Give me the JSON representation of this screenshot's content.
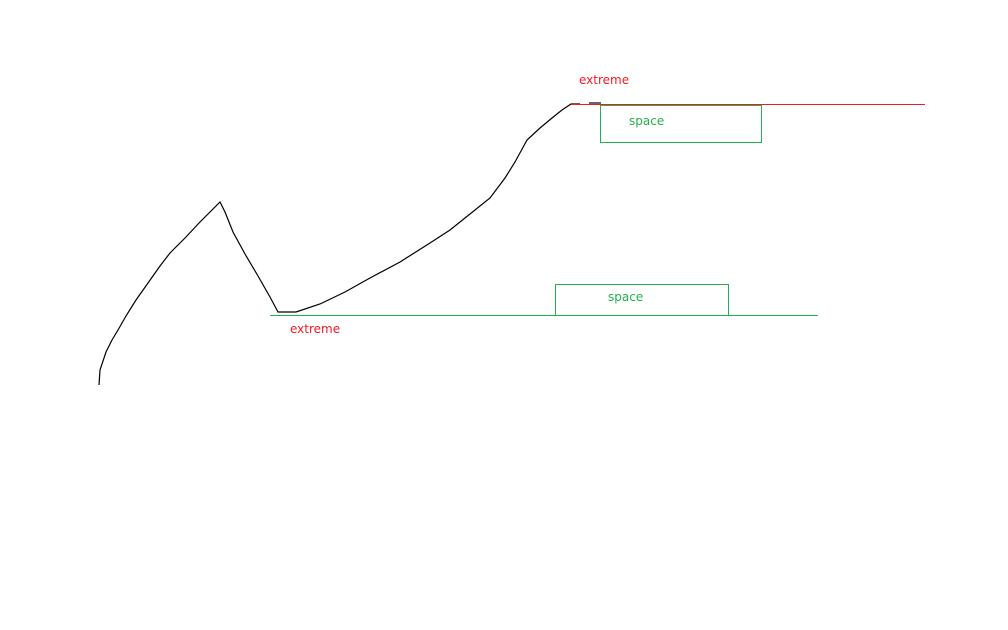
{
  "colors": {
    "curve": "#000000",
    "extreme": "#ed1c24",
    "space": "#22b14c"
  },
  "labels": {
    "top_extreme": "extreme",
    "top_space": "space",
    "bottom_extreme": "extreme",
    "bottom_space": "space"
  }
}
